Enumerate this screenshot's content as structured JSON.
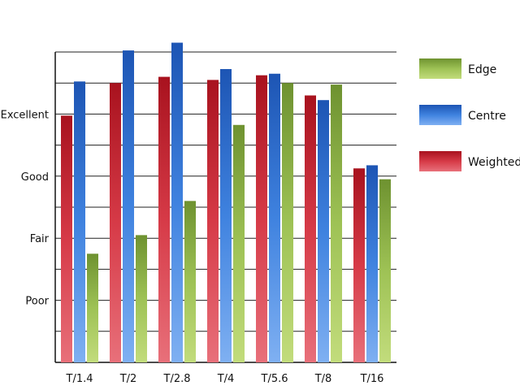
{
  "chart_data": {
    "type": "bar",
    "title": "",
    "xlabel": "",
    "ylabel": "",
    "categories": [
      "T/1.4",
      "T/2",
      "T/2.8",
      "T/4",
      "T/5.6",
      "T/8",
      "T/16"
    ],
    "y_tick_labels": [
      {
        "value": 2,
        "label": "Poor"
      },
      {
        "value": 4,
        "label": "Fair"
      },
      {
        "value": 6,
        "label": "Good"
      },
      {
        "value": 8,
        "label": "Excellent"
      }
    ],
    "ylim": [
      0,
      10
    ],
    "grid": true,
    "legend_position": "right",
    "series": [
      {
        "name": "Weighted",
        "color": "#c8202c",
        "values": [
          7.95,
          9.0,
          9.2,
          9.1,
          9.25,
          8.6,
          6.25
        ]
      },
      {
        "name": "Centre",
        "color": "#2f6fce",
        "values": [
          9.05,
          10.05,
          10.3,
          9.45,
          9.3,
          8.45,
          6.35
        ]
      },
      {
        "name": "Edge",
        "color": "#8ab040",
        "values": [
          3.5,
          4.1,
          5.2,
          7.65,
          9.0,
          8.95,
          5.9
        ]
      }
    ],
    "legend_order": [
      "Edge",
      "Centre",
      "Weighted"
    ]
  }
}
